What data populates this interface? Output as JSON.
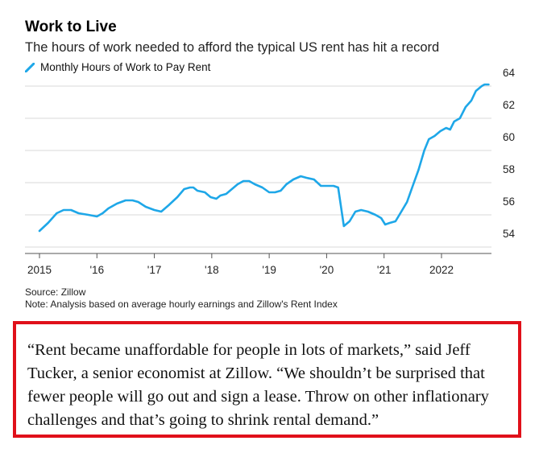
{
  "header": {
    "title": "Work to Live",
    "subtitle": "The hours of work needed to afford the typical US rent has hit a record",
    "legend_label": "Monthly Hours of Work to Pay Rent"
  },
  "colors": {
    "line": "#1ea7e8",
    "grid": "#d9d9d9",
    "axis": "#555555",
    "quote_border": "#e0101a"
  },
  "chart_data": {
    "type": "line",
    "title": "Work to Live",
    "subtitle": "The hours of work needed to afford the typical US rent has hit a record",
    "xlabel": "",
    "ylabel": "",
    "xlim": [
      2015,
      2022.8
    ],
    "ylim": [
      53.6,
      64.6
    ],
    "y_ticks": [
      54,
      56,
      58,
      60,
      62,
      64
    ],
    "x_ticks": [
      {
        "value": 2015,
        "label": "2015"
      },
      {
        "value": 2016,
        "label": "'16"
      },
      {
        "value": 2017,
        "label": "'17"
      },
      {
        "value": 2018,
        "label": "'18"
      },
      {
        "value": 2019,
        "label": "'19"
      },
      {
        "value": 2020,
        "label": "'20"
      },
      {
        "value": 2021,
        "label": "'21"
      },
      {
        "value": 2022,
        "label": "2022"
      }
    ],
    "grid": true,
    "legend": "top-left",
    "series": [
      {
        "name": "Monthly Hours of Work to Pay Rent",
        "points": [
          [
            2015.0,
            55.0
          ],
          [
            2015.15,
            55.5
          ],
          [
            2015.3,
            56.1
          ],
          [
            2015.42,
            56.3
          ],
          [
            2015.55,
            56.3
          ],
          [
            2015.68,
            56.1
          ],
          [
            2015.85,
            56.0
          ],
          [
            2016.0,
            55.9
          ],
          [
            2016.1,
            56.1
          ],
          [
            2016.2,
            56.4
          ],
          [
            2016.35,
            56.7
          ],
          [
            2016.5,
            56.9
          ],
          [
            2016.62,
            56.9
          ],
          [
            2016.72,
            56.8
          ],
          [
            2016.85,
            56.5
          ],
          [
            2017.0,
            56.3
          ],
          [
            2017.12,
            56.2
          ],
          [
            2017.25,
            56.6
          ],
          [
            2017.4,
            57.1
          ],
          [
            2017.52,
            57.6
          ],
          [
            2017.62,
            57.7
          ],
          [
            2017.68,
            57.7
          ],
          [
            2017.75,
            57.5
          ],
          [
            2017.88,
            57.4
          ],
          [
            2017.98,
            57.1
          ],
          [
            2018.08,
            57.0
          ],
          [
            2018.15,
            57.2
          ],
          [
            2018.25,
            57.3
          ],
          [
            2018.35,
            57.6
          ],
          [
            2018.45,
            57.9
          ],
          [
            2018.55,
            58.1
          ],
          [
            2018.65,
            58.1
          ],
          [
            2018.75,
            57.9
          ],
          [
            2018.88,
            57.7
          ],
          [
            2019.0,
            57.4
          ],
          [
            2019.1,
            57.4
          ],
          [
            2019.2,
            57.5
          ],
          [
            2019.3,
            57.9
          ],
          [
            2019.42,
            58.2
          ],
          [
            2019.55,
            58.4
          ],
          [
            2019.65,
            58.3
          ],
          [
            2019.78,
            58.2
          ],
          [
            2019.9,
            57.8
          ],
          [
            2020.0,
            57.8
          ],
          [
            2020.12,
            57.8
          ],
          [
            2020.2,
            57.7
          ],
          [
            2020.3,
            55.3
          ],
          [
            2020.4,
            55.6
          ],
          [
            2020.5,
            56.2
          ],
          [
            2020.6,
            56.3
          ],
          [
            2020.72,
            56.2
          ],
          [
            2020.85,
            56.0
          ],
          [
            2020.95,
            55.8
          ],
          [
            2021.02,
            55.4
          ],
          [
            2021.1,
            55.5
          ],
          [
            2021.2,
            55.6
          ],
          [
            2021.3,
            56.2
          ],
          [
            2021.4,
            56.8
          ],
          [
            2021.5,
            57.8
          ],
          [
            2021.6,
            58.8
          ],
          [
            2021.7,
            60.0
          ],
          [
            2021.78,
            60.7
          ],
          [
            2021.88,
            60.9
          ],
          [
            2021.98,
            61.2
          ],
          [
            2022.08,
            61.4
          ],
          [
            2022.15,
            61.3
          ],
          [
            2022.22,
            61.8
          ],
          [
            2022.32,
            62.0
          ],
          [
            2022.42,
            62.7
          ],
          [
            2022.52,
            63.1
          ],
          [
            2022.6,
            63.7
          ],
          [
            2022.7,
            64.0
          ],
          [
            2022.75,
            64.1
          ],
          [
            2022.82,
            64.1
          ]
        ]
      }
    ]
  },
  "footer": {
    "source": "Source: Zillow",
    "note": "Note: Analysis based on average hourly earnings and Zillow's Rent Index"
  },
  "quote": {
    "text": "“Rent became unaffordable for people in lots of markets,” said Jeff Tucker, a senior economist at Zillow. “We shouldn’t be surprised that fewer people will go out and sign a lease. Throw on other inflationary challenges and that’s going to shrink rental demand.”"
  }
}
